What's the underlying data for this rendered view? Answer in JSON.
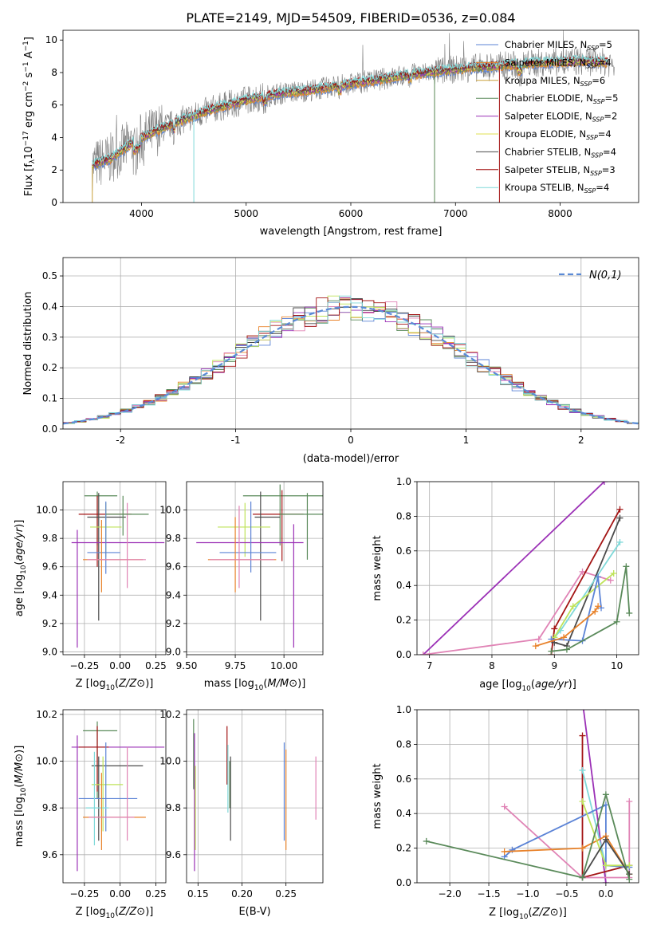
{
  "figure_title": "PLATE=2149, MJD=54509, FIBERID=0536, z=0.084",
  "colors": {
    "chabrier_miles": "#5b83d6",
    "salpeter_miles": "#e8822a",
    "kroupa_miles": "#c9a03a",
    "chabrier_elodie": "#5a8a5a",
    "salpeter_elodie": "#9b30b6",
    "kroupa_elodie": "#e0e050",
    "chabrier_stelib": "#4a4a4a",
    "salpeter_stelib": "#a31414",
    "kroupa_stelib": "#7fd9d9",
    "pink": "#e083b5",
    "lime": "#bfe35a",
    "data": "#808080",
    "normal": "#5b8ad6"
  },
  "chart_data": [
    {
      "id": "spectrum",
      "type": "line",
      "title": "PLATE=2149, MJD=54509, FIBERID=0536, z=0.084",
      "xlabel": "wavelength [Angstrom, rest frame]",
      "xlim": [
        3250,
        8750
      ],
      "ylim": [
        0,
        10.6
      ],
      "xticks": [
        4000,
        5000,
        6000,
        7000,
        8000
      ],
      "yticks": [
        0,
        2,
        4,
        6,
        8,
        10
      ],
      "grid": false,
      "legend_position": "top-right",
      "legend": [
        {
          "name": "Chabrier MILES, N",
          "sub": "SSP",
          "n": "=5"
        },
        {
          "name": "Salpeter MILES, N",
          "sub": "SSP",
          "n": "=4"
        },
        {
          "name": "Kroupa MILES, N",
          "sub": "SSP",
          "n": "=6"
        },
        {
          "name": "Chabrier ELODIE, N",
          "sub": "SSP",
          "n": "=5"
        },
        {
          "name": "Salpeter ELODIE, N",
          "sub": "SSP",
          "n": "=2"
        },
        {
          "name": "Kroupa ELODIE, N",
          "sub": "SSP",
          "n": "=4"
        },
        {
          "name": "Chabrier STELIB, N",
          "sub": "SSP",
          "n": "=4"
        },
        {
          "name": "Salpeter STELIB, N",
          "sub": "SSP",
          "n": "=3"
        },
        {
          "name": "Kroupa STELIB, N",
          "sub": "SSP",
          "n": "=4"
        }
      ],
      "continuum": [
        [
          3530,
          2.3
        ],
        [
          3700,
          2.7
        ],
        [
          3900,
          3.6
        ],
        [
          4100,
          4.3
        ],
        [
          4400,
          5.1
        ],
        [
          4700,
          5.8
        ],
        [
          5000,
          6.3
        ],
        [
          5300,
          6.7
        ],
        [
          5600,
          6.9
        ],
        [
          6000,
          7.3
        ],
        [
          6300,
          7.6
        ],
        [
          6600,
          7.9
        ],
        [
          7000,
          8.2
        ],
        [
          7400,
          8.4
        ],
        [
          7800,
          8.6
        ],
        [
          8200,
          8.7
        ],
        [
          8500,
          8.6
        ]
      ]
    },
    {
      "id": "residuals",
      "type": "step",
      "xlabel": "(data-model)/error",
      "ylabel": "Normed distribution",
      "xlim": [
        -2.5,
        2.5
      ],
      "ylim": [
        0,
        0.56
      ],
      "xticks": [
        -2,
        -1,
        0,
        1,
        2
      ],
      "yticks": [
        0.0,
        0.1,
        0.2,
        0.3,
        0.4,
        0.5
      ],
      "grid": true,
      "legend_position": "top-right",
      "normal_label": "N(0,1)",
      "normal_mu": 0.0,
      "normal_sigma": 1.0,
      "bin_width": 0.1
    },
    {
      "id": "age_vs_Z",
      "type": "errorbar",
      "xlabel": "Z [log10(Z/Z⊙)]",
      "ylabel": "age  [log10(age/yr)]",
      "xlim": [
        -0.4,
        0.32
      ],
      "ylim": [
        8.98,
        10.2
      ],
      "xticks": [
        -0.25,
        0.0,
        0.25
      ],
      "xticklabels": [
        "−0.25",
        "0.00",
        "0.25"
      ],
      "yticks": [
        9.0,
        9.2,
        9.4,
        9.6,
        9.8,
        10.0
      ],
      "grid": true,
      "points": [
        {
          "c": "chabrier_elodie",
          "x": -0.16,
          "y": 10.1,
          "xl": -0.25,
          "xh": -0.02,
          "yl": 9.75,
          "yh": 10.13
        },
        {
          "c": "salpeter_stelib",
          "x": -0.16,
          "y": 9.97,
          "xl": -0.29,
          "xh": 0.08,
          "yl": 9.6,
          "yh": 10.1
        },
        {
          "c": "chabrier_stelib",
          "x": -0.15,
          "y": 9.95,
          "xl": -0.23,
          "xh": 0.04,
          "yl": 9.22,
          "yh": 10.12
        },
        {
          "c": "lime",
          "x": -0.1,
          "y": 9.88,
          "xl": -0.21,
          "xh": 0.01,
          "yl": 9.67,
          "yh": 10.05
        },
        {
          "c": "salpeter_elodie",
          "x": -0.3,
          "y": 9.77,
          "xl": -0.34,
          "xh": 0.31,
          "yl": 9.03,
          "yh": 9.86
        },
        {
          "c": "chabrier_miles",
          "x": -0.1,
          "y": 9.7,
          "xl": -0.23,
          "xh": 0.0,
          "yl": 9.55,
          "yh": 10.06
        },
        {
          "c": "salpeter_miles",
          "x": -0.13,
          "y": 9.65,
          "xl": -0.26,
          "xh": 0.16,
          "yl": 9.42,
          "yh": 9.93
        },
        {
          "c": "pink",
          "x": 0.05,
          "y": 9.65,
          "xl": -0.23,
          "xh": 0.18,
          "yl": 9.45,
          "yh": 10.05
        },
        {
          "c": "chabrier_elodie",
          "x": 0.02,
          "y": 9.97,
          "xl": -0.1,
          "xh": 0.2,
          "yl": 9.82,
          "yh": 10.1
        }
      ]
    },
    {
      "id": "age_vs_mass",
      "type": "errorbar",
      "xlabel": "mass [log10(M/M⊙)]",
      "xlim": [
        9.5,
        10.2
      ],
      "ylim": [
        8.98,
        10.2
      ],
      "xticks": [
        9.5,
        9.75,
        10.0
      ],
      "xticklabels": [
        "9.50",
        "9.75",
        "10.00"
      ],
      "yticks": [
        9.0,
        9.2,
        9.4,
        9.6,
        9.8,
        10.0
      ],
      "grid": true,
      "points": [
        {
          "c": "chabrier_elodie",
          "x": 9.98,
          "y": 10.1,
          "xl": 9.79,
          "xh": 10.2,
          "yl": 9.75,
          "yh": 10.18
        },
        {
          "c": "salpeter_stelib",
          "x": 9.99,
          "y": 9.97,
          "xl": 9.84,
          "xh": 10.1,
          "yl": 9.64,
          "yh": 10.14
        },
        {
          "c": "chabrier_stelib",
          "x": 9.88,
          "y": 9.95,
          "xl": 9.85,
          "xh": 9.98,
          "yl": 9.22,
          "yh": 10.13
        },
        {
          "c": "lime",
          "x": 9.8,
          "y": 9.88,
          "xl": 9.66,
          "xh": 9.93,
          "yl": 9.67,
          "yh": 10.05
        },
        {
          "c": "salpeter_elodie",
          "x": 10.05,
          "y": 9.77,
          "xl": 9.55,
          "xh": 10.1,
          "yl": 9.03,
          "yh": 9.9
        },
        {
          "c": "chabrier_miles",
          "x": 9.83,
          "y": 9.7,
          "xl": 9.67,
          "xh": 9.96,
          "yl": 9.56,
          "yh": 10.06
        },
        {
          "c": "salpeter_miles",
          "x": 9.75,
          "y": 9.65,
          "xl": 9.61,
          "xh": 9.96,
          "yl": 9.42,
          "yh": 9.95
        },
        {
          "c": "pink",
          "x": 9.77,
          "y": 9.65,
          "xl": 9.62,
          "xh": 9.95,
          "yl": 9.45,
          "yh": 10.03
        },
        {
          "c": "chabrier_elodie",
          "x": 10.12,
          "y": 9.97,
          "xl": 9.98,
          "xh": 10.2,
          "yl": 9.65,
          "yh": 10.12
        }
      ]
    },
    {
      "id": "weight_vs_age",
      "type": "line",
      "xlabel": "age  [log10(age/yr)]",
      "ylabel": "mass weight",
      "xlim": [
        6.8,
        10.35
      ],
      "ylim": [
        0,
        1
      ],
      "xticks": [
        7,
        8,
        9,
        10
      ],
      "yticks": [
        0.0,
        0.2,
        0.4,
        0.6,
        0.8,
        1.0
      ],
      "grid": true,
      "series": [
        {
          "c": "salpeter_elodie",
          "pts": [
            [
              6.9,
              0.0
            ],
            [
              9.8,
              1.0
            ]
          ]
        },
        {
          "c": "pink",
          "pts": [
            [
              6.9,
              0.0
            ],
            [
              8.75,
              0.09
            ],
            [
              9.45,
              0.48
            ],
            [
              9.9,
              0.43
            ]
          ]
        },
        {
          "c": "salpeter_stelib",
          "pts": [
            [
              8.95,
              0.0
            ],
            [
              9.0,
              0.15
            ],
            [
              10.05,
              0.84
            ]
          ]
        },
        {
          "c": "chabrier_stelib",
          "pts": [
            [
              9.0,
              0.07
            ],
            [
              9.2,
              0.05
            ],
            [
              10.05,
              0.79
            ]
          ]
        },
        {
          "c": "kroupa_stelib",
          "pts": [
            [
              9.0,
              0.1
            ],
            [
              9.1,
              0.14
            ],
            [
              10.05,
              0.65
            ]
          ]
        },
        {
          "c": "lime",
          "pts": [
            [
              9.0,
              0.1
            ],
            [
              9.3,
              0.28
            ],
            [
              9.95,
              0.47
            ]
          ]
        },
        {
          "c": "chabrier_miles",
          "pts": [
            [
              8.95,
              0.09
            ],
            [
              9.45,
              0.08
            ],
            [
              9.7,
              0.45
            ],
            [
              9.75,
              0.27
            ]
          ]
        },
        {
          "c": "salpeter_miles",
          "pts": [
            [
              8.7,
              0.05
            ],
            [
              9.15,
              0.1
            ],
            [
              9.65,
              0.25
            ],
            [
              9.7,
              0.28
            ]
          ]
        },
        {
          "c": "chabrier_elodie",
          "pts": [
            [
              8.95,
              0.02
            ],
            [
              9.2,
              0.03
            ],
            [
              10.0,
              0.19
            ],
            [
              10.15,
              0.51
            ],
            [
              10.2,
              0.24
            ]
          ]
        }
      ]
    },
    {
      "id": "mass_vs_Z",
      "type": "errorbar",
      "xlabel": "Z [log10(Z/Z⊙)]",
      "ylabel": "mass [log10(M/M⊙)]",
      "xlim": [
        -0.4,
        0.32
      ],
      "ylim": [
        9.48,
        10.22
      ],
      "xticks": [
        -0.25,
        0.0,
        0.25
      ],
      "xticklabels": [
        "−0.25",
        "0.00",
        "0.25"
      ],
      "yticks": [
        9.6,
        9.8,
        10.0,
        10.2
      ],
      "grid": true,
      "points": [
        {
          "c": "chabrier_elodie",
          "x": -0.16,
          "y": 10.13,
          "xl": -0.26,
          "xh": -0.02,
          "yl": 9.84,
          "yh": 10.17
        },
        {
          "c": "salpeter_elodie",
          "x": -0.3,
          "y": 10.06,
          "xl": -0.34,
          "xh": 0.31,
          "yl": 9.53,
          "yh": 10.11
        },
        {
          "c": "salpeter_stelib",
          "x": -0.16,
          "y": 10.06,
          "xl": -0.29,
          "xh": -0.08,
          "yl": 9.87,
          "yh": 10.15
        },
        {
          "c": "chabrier_stelib",
          "x": -0.15,
          "y": 9.98,
          "xl": -0.2,
          "xh": 0.16,
          "yl": 9.66,
          "yh": 10.02
        },
        {
          "c": "lime",
          "x": -0.12,
          "y": 9.9,
          "xl": -0.2,
          "xh": 0.02,
          "yl": 9.7,
          "yh": 10.02
        },
        {
          "c": "chabrier_miles",
          "x": -0.1,
          "y": 9.84,
          "xl": -0.29,
          "xh": 0.12,
          "yl": 9.7,
          "yh": 10.08
        },
        {
          "c": "kroupa_stelib",
          "x": -0.18,
          "y": 9.8,
          "xl": -0.24,
          "xh": -0.08,
          "yl": 9.64,
          "yh": 10.04
        },
        {
          "c": "salpeter_miles",
          "x": -0.13,
          "y": 9.76,
          "xl": -0.26,
          "xh": 0.18,
          "yl": 9.62,
          "yh": 9.95
        },
        {
          "c": "pink",
          "x": 0.05,
          "y": 9.76,
          "xl": -0.22,
          "xh": 0.1,
          "yl": 9.66,
          "yh": 10.06
        }
      ]
    },
    {
      "id": "mass_vs_ebv",
      "type": "errorbar",
      "xlabel": "E(B-V)",
      "xlim": [
        0.137,
        0.292
      ],
      "ylim": [
        9.48,
        10.22
      ],
      "xticks": [
        0.15,
        0.2,
        0.25
      ],
      "xticklabels": [
        "0.15",
        "0.20",
        "0.25"
      ],
      "yticks": [
        9.6,
        9.8,
        10.0,
        10.2
      ],
      "grid": true,
      "points": [
        {
          "c": "chabrier_elodie",
          "x": 0.145,
          "y": 10.1,
          "yl": 9.88,
          "yh": 10.18
        },
        {
          "c": "salpeter_elodie",
          "x": 0.146,
          "y": 9.85,
          "yl": 9.53,
          "yh": 10.12
        },
        {
          "c": "lime",
          "x": 0.147,
          "y": 9.8,
          "yl": 9.62,
          "yh": 9.98
        },
        {
          "c": "salpeter_stelib",
          "x": 0.183,
          "y": 10.05,
          "yl": 9.9,
          "yh": 10.15
        },
        {
          "c": "kroupa_stelib",
          "x": 0.184,
          "y": 9.95,
          "yl": 9.78,
          "yh": 10.07
        },
        {
          "c": "chabrier_stelib",
          "x": 0.187,
          "y": 9.85,
          "yl": 9.66,
          "yh": 10.02
        },
        {
          "c": "chabrier_elodie",
          "x": 0.186,
          "y": 9.9,
          "yl": 9.8,
          "yh": 10.0
        },
        {
          "c": "chabrier_miles",
          "x": 0.248,
          "y": 9.9,
          "yl": 9.66,
          "yh": 10.08
        },
        {
          "c": "salpeter_miles",
          "x": 0.25,
          "y": 9.8,
          "yl": 9.62,
          "yh": 10.05
        },
        {
          "c": "pink",
          "x": 0.284,
          "y": 9.88,
          "yl": 9.75,
          "yh": 10.02
        }
      ]
    },
    {
      "id": "weight_vs_Z",
      "type": "line",
      "xlabel": "Z [log10(Z/Z⊙)]",
      "ylabel": "mass weight",
      "xlim": [
        -2.42,
        0.42
      ],
      "ylim": [
        0,
        1
      ],
      "xticks": [
        -2.0,
        -1.5,
        -1.0,
        -0.5,
        0.0
      ],
      "xticklabels": [
        "−2.0",
        "−1.5",
        "−1.0",
        "−0.5",
        "0.0"
      ],
      "yticks": [
        0.0,
        0.2,
        0.4,
        0.6,
        0.8,
        1.0
      ],
      "grid": true,
      "series": [
        {
          "c": "salpeter_elodie",
          "pts": [
            [
              -0.3,
              1.05
            ],
            [
              0.0,
              0.0
            ]
          ]
        },
        {
          "c": "salpeter_stelib",
          "pts": [
            [
              -0.3,
              0.85
            ],
            [
              -0.3,
              0.03
            ],
            [
              0.3,
              0.1
            ]
          ]
        },
        {
          "c": "kroupa_stelib",
          "pts": [
            [
              -0.3,
              0.65
            ],
            [
              0.0,
              0.1
            ],
            [
              0.3,
              0.09
            ]
          ]
        },
        {
          "c": "pink",
          "pts": [
            [
              -1.3,
              0.44
            ],
            [
              -0.3,
              0.03
            ],
            [
              0.3,
              0.03
            ],
            [
              0.3,
              0.47
            ]
          ]
        },
        {
          "c": "chabrier_miles",
          "pts": [
            [
              -1.3,
              0.15
            ],
            [
              -1.2,
              0.19
            ],
            [
              0.0,
              0.45
            ],
            [
              0.0,
              0.1
            ],
            [
              0.3,
              0.09
            ]
          ]
        },
        {
          "c": "salpeter_miles",
          "pts": [
            [
              -1.3,
              0.18
            ],
            [
              -0.3,
              0.2
            ],
            [
              0.0,
              0.27
            ],
            [
              0.3,
              0.05
            ]
          ]
        },
        {
          "c": "lime",
          "pts": [
            [
              -0.3,
              0.47
            ],
            [
              0.0,
              0.1
            ],
            [
              0.3,
              0.1
            ]
          ]
        },
        {
          "c": "chabrier_stelib",
          "pts": [
            [
              -0.3,
              0.03
            ],
            [
              0.0,
              0.25
            ],
            [
              0.3,
              0.05
            ]
          ]
        },
        {
          "c": "chabrier_elodie",
          "pts": [
            [
              -2.3,
              0.24
            ],
            [
              -0.3,
              0.03
            ],
            [
              0.0,
              0.51
            ],
            [
              0.3,
              0.02
            ]
          ]
        }
      ]
    }
  ]
}
